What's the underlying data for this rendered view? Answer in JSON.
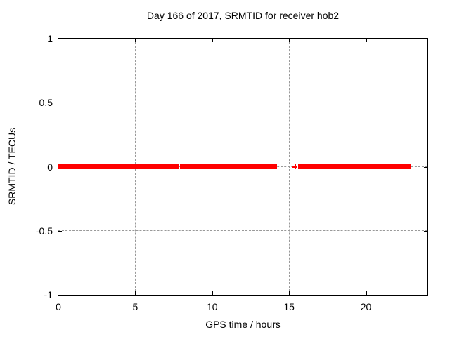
{
  "chart_data": {
    "type": "line",
    "title": "Day 166 of 2017, SRMTID for receiver hob2",
    "xlabel": "GPS time / hours",
    "ylabel": "SRMTID / TECUs",
    "xlim": [
      0,
      24
    ],
    "ylim": [
      -1,
      1
    ],
    "grid": true,
    "legend": "none",
    "colors": {
      "series": "#ff0000",
      "grid": "#999999",
      "border": "#000000",
      "text": "#000000",
      "background": "#ffffff"
    },
    "xticks": [
      {
        "label": "0",
        "value": 0
      },
      {
        "label": "5",
        "value": 5
      },
      {
        "label": "10",
        "value": 10
      },
      {
        "label": "15",
        "value": 15
      },
      {
        "label": "20",
        "value": 20
      }
    ],
    "yticks": [
      {
        "label": "1",
        "value": 1
      },
      {
        "label": "0.5",
        "value": 0.5
      },
      {
        "label": "0",
        "value": 0
      },
      {
        "label": "-0.5",
        "value": -0.5
      },
      {
        "label": "-1",
        "value": -1
      }
    ],
    "series": [
      {
        "name": "SRMTID",
        "style": "linespoints",
        "color": "#ff0000",
        "segments": [
          {
            "x_start": 0.0,
            "x_end": 7.8,
            "y": 0
          },
          {
            "x_start": 7.9,
            "x_end": 14.2,
            "y": 0
          },
          {
            "x_start": 15.6,
            "x_end": 22.9,
            "y": 0
          }
        ],
        "isolated_points": [
          {
            "x": 15.4,
            "y": 0
          }
        ]
      }
    ]
  }
}
